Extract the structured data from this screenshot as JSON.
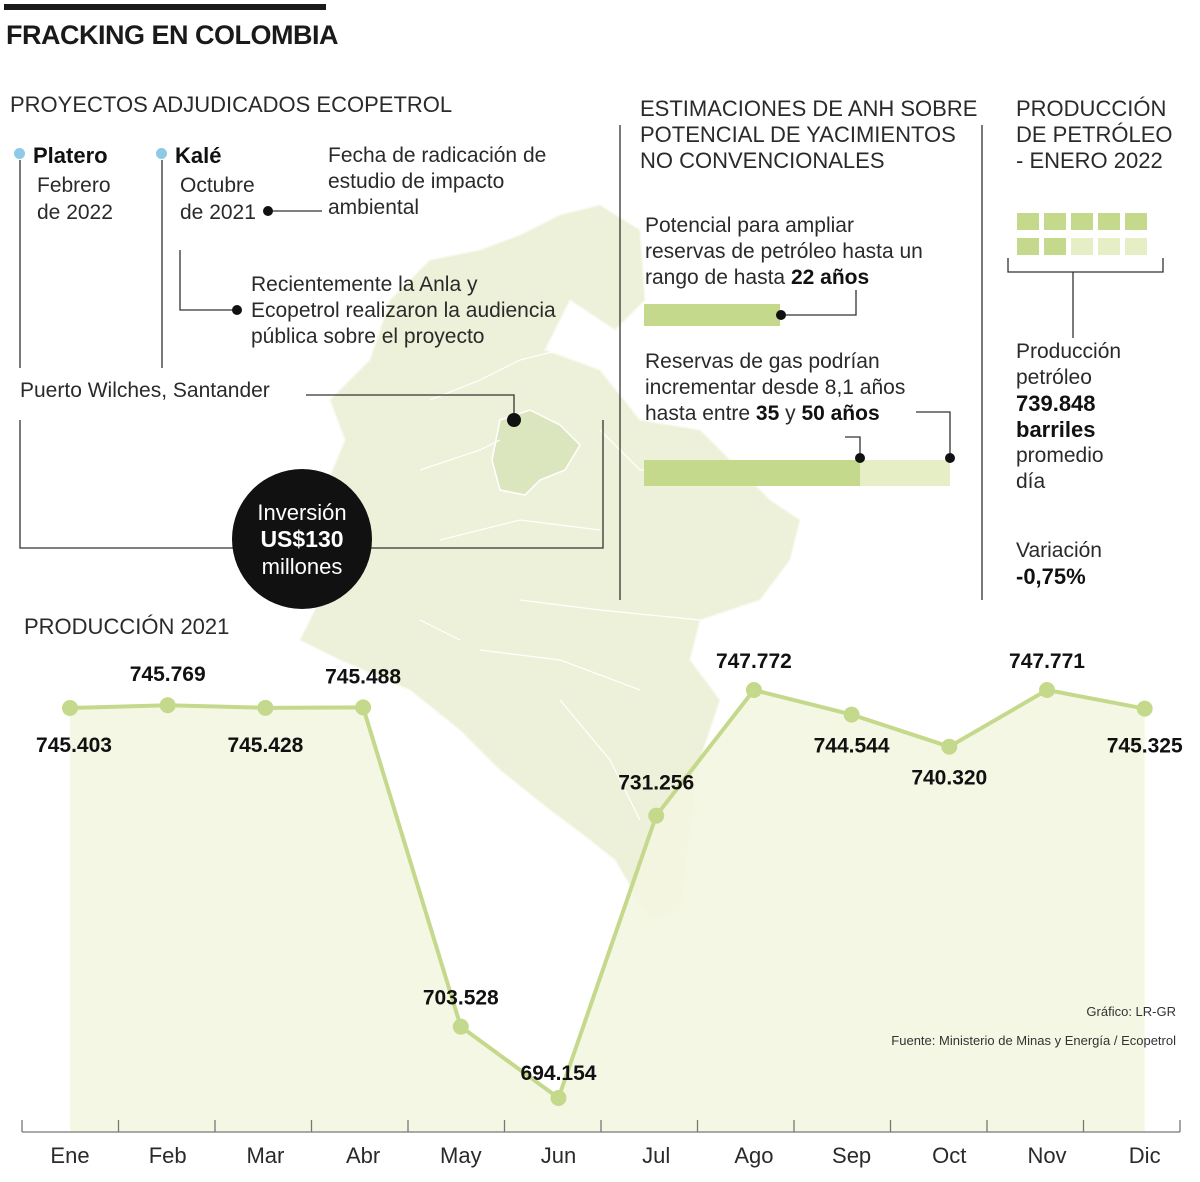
{
  "header": {
    "title": "FRACKING EN COLOMBIA"
  },
  "projects": {
    "heading": "PROYECTOS ADJUDICADOS ECOPETROL",
    "platero": {
      "name": "Platero",
      "date_line1": "Febrero",
      "date_line2": "de 2022"
    },
    "kale": {
      "name": "Kalé",
      "date_line1": "Octubre",
      "date_line2": "de 2021"
    },
    "note_radicacion": [
      "Fecha de radicación de",
      "estudio de impacto",
      "ambiental"
    ],
    "note_audiencia": [
      "Recientemente la Anla y",
      "Ecopetrol realizaron la audiencia",
      "pública sobre el proyecto"
    ],
    "location": "Puerto Wilches, Santander",
    "investment": {
      "line1": "Inversión",
      "amount": "US$130",
      "line3": "millones"
    }
  },
  "anh": {
    "heading": [
      "ESTIMACIONES DE ANH SOBRE",
      "POTENCIAL DE YACIMIENTOS",
      "NO CONVENCIONALES"
    ],
    "oil_text": [
      "Potencial para ampliar",
      "reservas de petróleo hasta un"
    ],
    "oil_text_last_prefix": "rango de hasta ",
    "oil_text_bold": "22 años",
    "gas_text": [
      "Reservas de gas podrían",
      "incrementar desde 8,1 años"
    ],
    "gas_text_last_prefix": "hasta entre ",
    "gas_bold_1": "35",
    "gas_mid": " y ",
    "gas_bold_2": "50 años",
    "oil_bar_years": 22,
    "gas_bar_years_low": 35,
    "gas_bar_years_high": 50
  },
  "produccion_enero": {
    "heading": [
      "PRODUCCIÓN",
      "DE PETRÓLEO",
      "- ENERO 2022"
    ],
    "label": [
      "Producción",
      "petróleo"
    ],
    "value_bold": [
      "739.848",
      "barriles"
    ],
    "suffix": [
      "promedio",
      "día"
    ],
    "variation_label": "Variación",
    "variation_value": "-0,75%"
  },
  "colors": {
    "green": "#c5d98d",
    "light_green": "#e6eec6",
    "area_fill": "#f3f6e0",
    "map_fill": "#eef1d9",
    "map_highlight": "#dbe6bf",
    "black": "#111111",
    "blue_dot": "#8ecae6"
  },
  "credits": {
    "grafico": "Gráfico: LR-GR",
    "fuente": "Fuente: Ministerio de Minas y Energía / Ecopetrol"
  },
  "chart_data": {
    "type": "line",
    "title": "PRODUCCIÓN 2021",
    "xlabel": "",
    "ylabel": "",
    "categories": [
      "Ene",
      "Feb",
      "Mar",
      "Abr",
      "May",
      "Jun",
      "Jul",
      "Ago",
      "Sep",
      "Oct",
      "Nov",
      "Dic"
    ],
    "values": [
      745403,
      745769,
      745428,
      745488,
      703528,
      694154,
      731256,
      747772,
      744544,
      740320,
      747771,
      745325
    ],
    "value_labels": [
      "745.403",
      "745.769",
      "745.428",
      "745.488",
      "703.528",
      "694.154",
      "731.256",
      "747.772",
      "744.544",
      "740.320",
      "747.771",
      "745.325"
    ],
    "ylim": [
      688000,
      752000
    ],
    "grid": false,
    "area_fill": true
  }
}
